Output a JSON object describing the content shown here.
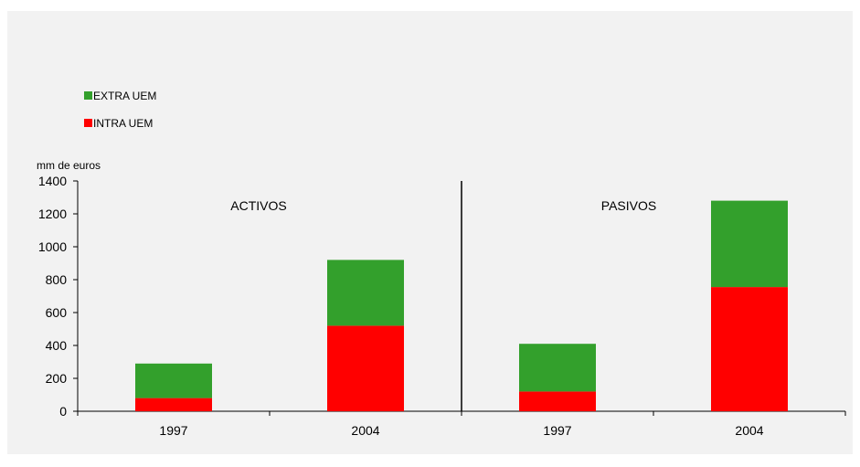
{
  "chart_data": {
    "type": "bar",
    "stacked": true,
    "unit_label": "mm de euros",
    "groups": [
      {
        "label": "ACTIVOS",
        "categories": [
          "1997",
          "2004"
        ]
      },
      {
        "label": "PASIVOS",
        "categories": [
          "1997",
          "2004"
        ]
      }
    ],
    "categories": [
      "1997",
      "2004",
      "1997",
      "2004"
    ],
    "series": [
      {
        "name": "INTRA UEM",
        "color": "#ff0000",
        "values": [
          80,
          520,
          120,
          755
        ]
      },
      {
        "name": "EXTRA UEM",
        "color": "#33a02c",
        "values": [
          210,
          400,
          290,
          525
        ]
      }
    ],
    "legend": {
      "placement": "top-left",
      "entries": [
        {
          "name": "EXTRA UEM",
          "color": "#33a02c"
        },
        {
          "name": "INTRA UEM",
          "color": "#ff0000"
        }
      ]
    },
    "ylim": [
      0,
      1400
    ],
    "yticks": [
      "0",
      "200",
      "400",
      "600",
      "800",
      "1000",
      "1200",
      "1400"
    ],
    "grid": false
  }
}
